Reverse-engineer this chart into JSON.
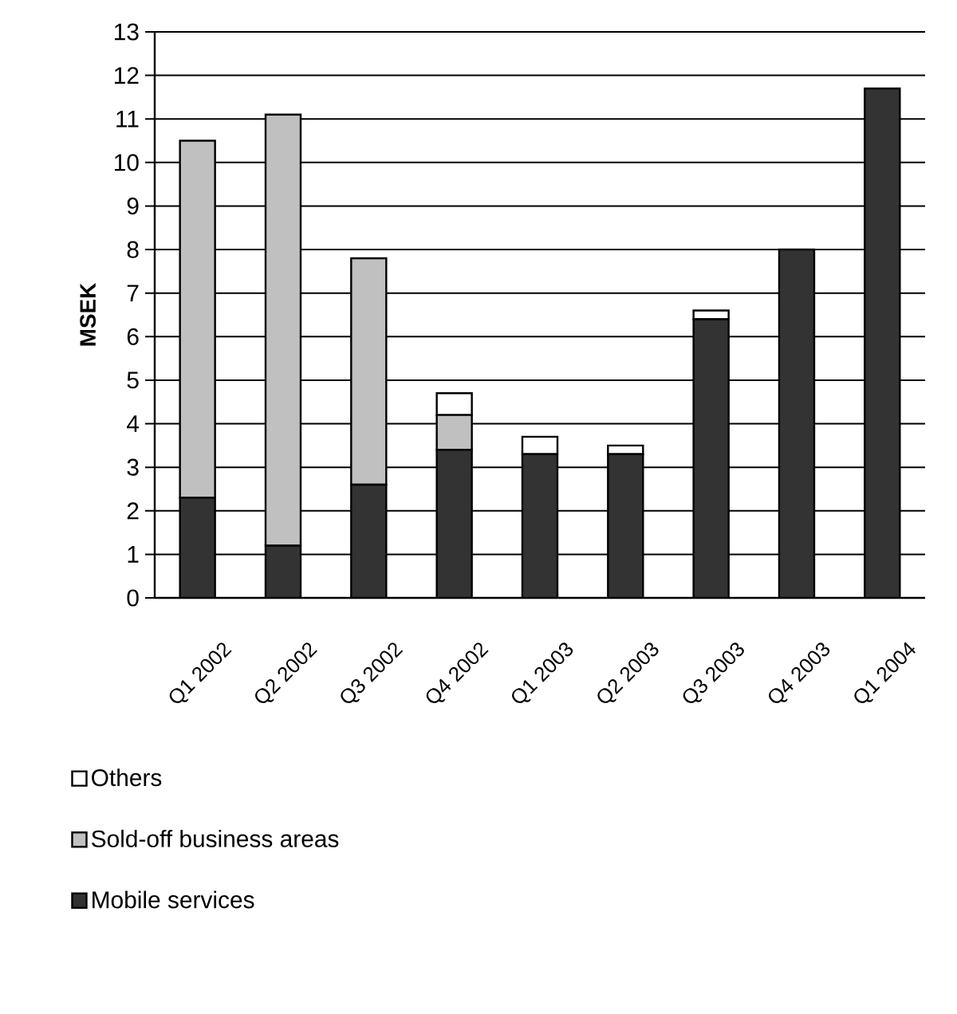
{
  "chart_data": {
    "type": "bar",
    "ylabel": "MSEK",
    "stacked": true,
    "grid": "y",
    "legend": "bottom",
    "categories": [
      "Q1 2002",
      "Q2 2002",
      "Q3 2002",
      "Q4 2002",
      "Q1 2003",
      "Q2 2003",
      "Q3 2003",
      "Q4 2003",
      "Q1 2004"
    ],
    "ylim": [
      0,
      13
    ],
    "yticks": [
      0,
      1,
      2,
      3,
      4,
      5,
      6,
      7,
      8,
      9,
      10,
      11,
      12,
      13
    ],
    "series": [
      {
        "name": "Mobile services",
        "color": "#333333",
        "values": [
          2.3,
          1.2,
          2.6,
          3.4,
          3.3,
          3.3,
          6.4,
          8.0,
          11.7
        ]
      },
      {
        "name": "Sold-off business areas",
        "color": "#c0c0c0",
        "values": [
          8.2,
          9.9,
          5.2,
          0.8,
          0,
          0,
          0,
          0,
          0
        ]
      },
      {
        "name": "Others",
        "color": "#ffffff",
        "values": [
          0,
          0,
          0,
          0.5,
          0.4,
          0.2,
          0.2,
          0,
          0
        ]
      }
    ]
  }
}
